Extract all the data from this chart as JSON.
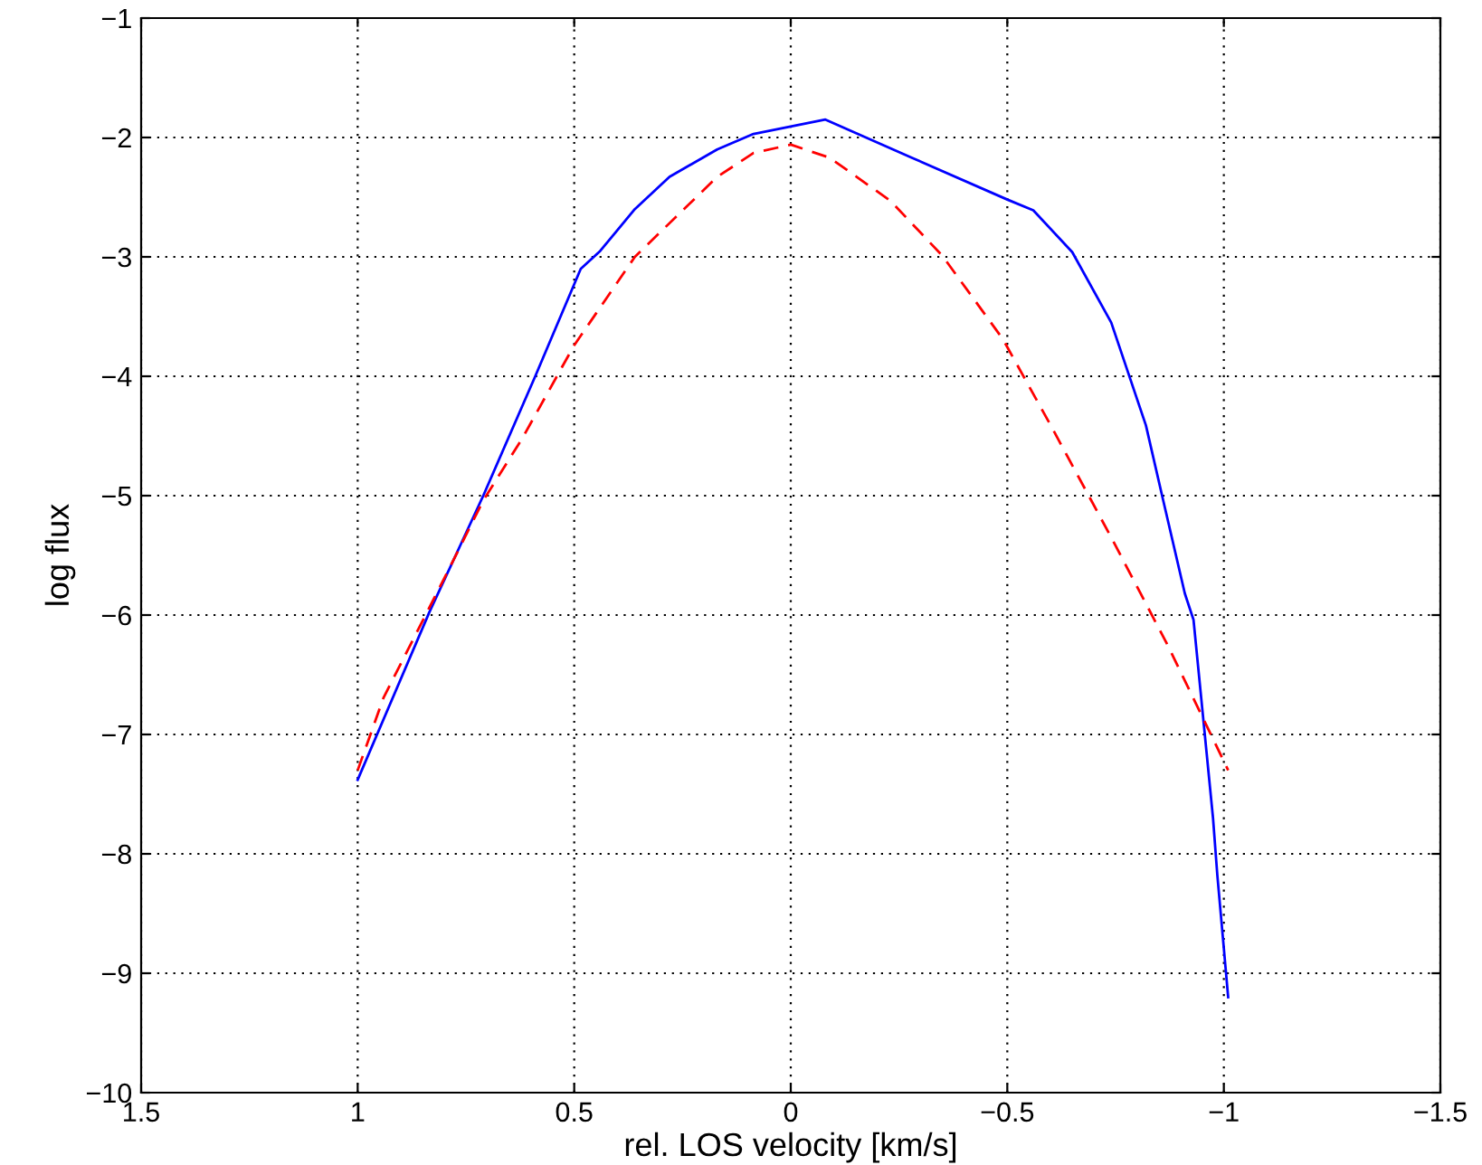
{
  "chart_data": {
    "type": "line",
    "xlabel": "rel. LOS velocity [km/s]",
    "ylabel": "log flux",
    "xlim": [
      1.5,
      -1.5
    ],
    "xticks": [
      1.5,
      1,
      0.5,
      0,
      {
        "value": -0.5,
        "label": "−0.5"
      },
      {
        "value": -1,
        "label": "−1"
      },
      {
        "value": -1.5,
        "label": "−1.5"
      }
    ],
    "ylim": [
      -10,
      -1
    ],
    "yticks": [
      {
        "value": -10,
        "label": "−10"
      },
      {
        "value": -9,
        "label": "−9"
      },
      {
        "value": -8,
        "label": "−8"
      },
      {
        "value": -7,
        "label": "−7"
      },
      {
        "value": -6,
        "label": "−6"
      },
      {
        "value": -5,
        "label": "−5"
      },
      {
        "value": -4,
        "label": "−4"
      },
      {
        "value": -3,
        "label": "−3"
      },
      {
        "value": -2,
        "label": "−2"
      },
      {
        "value": -1,
        "label": "−1"
      }
    ],
    "grid": true,
    "series": [
      {
        "color": "#0000ff",
        "line_style": "solid",
        "x": [
          1.0,
          0.835,
          0.71,
          0.59,
          0.485,
          0.44,
          0.36,
          0.28,
          0.17,
          0.086,
          -0.08,
          -0.28,
          -0.5,
          -0.56,
          -0.65,
          -0.74,
          -0.82,
          -0.86,
          -0.91,
          -0.93,
          -0.975,
          -0.985,
          -1.01
        ],
        "values": [
          -7.38,
          -5.98,
          -5.0,
          -4.0,
          -3.1,
          -2.95,
          -2.6,
          -2.33,
          -2.1,
          -1.97,
          -1.85,
          -2.17,
          -2.52,
          -2.61,
          -2.96,
          -3.55,
          -4.41,
          -5.04,
          -5.82,
          -6.04,
          -7.7,
          -8.18,
          -9.2
        ]
      },
      {
        "color": "#ff0000",
        "line_style": "dashed",
        "x": [
          1.0,
          0.94,
          0.79,
          0.71,
          0.62,
          0.5,
          0.36,
          0.17,
          0.086,
          0.0,
          -0.09,
          -0.23,
          -0.35,
          -0.49,
          -0.6,
          -0.74,
          -0.87,
          -1.01
        ],
        "values": [
          -7.3,
          -6.69,
          -5.62,
          -5.04,
          -4.52,
          -3.74,
          -3.0,
          -2.33,
          -2.13,
          -2.06,
          -2.17,
          -2.53,
          -2.99,
          -3.69,
          -4.41,
          -5.35,
          -6.25,
          -7.3
        ]
      }
    ]
  }
}
